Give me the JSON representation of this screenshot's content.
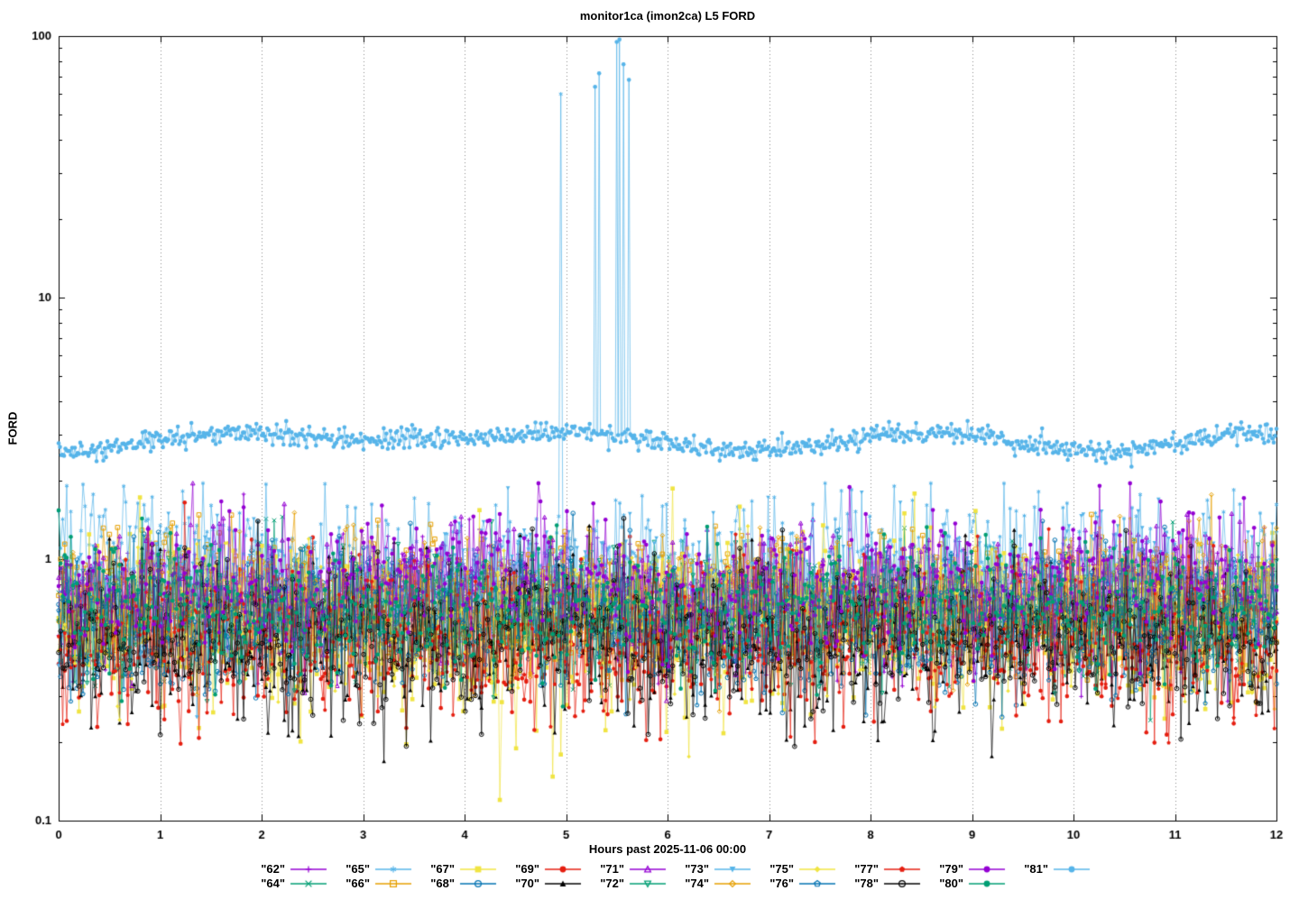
{
  "chart_data": {
    "type": "line",
    "title": "monitor1ca (imon2ca) L5 FORD",
    "xlabel": "Hours past 2025-11-06 00:00",
    "ylabel": "FORD",
    "x_range": [
      0,
      12
    ],
    "y_range": [
      0.1,
      100
    ],
    "y_scale": "log",
    "grid": "vertical-dotted-hourly",
    "legend_position": "bottom",
    "xtick_labels": [
      "0",
      "1",
      "2",
      "3",
      "4",
      "5",
      "6",
      "7",
      "8",
      "9",
      "10",
      "11",
      "12"
    ],
    "xtick_values": [
      0,
      1,
      2,
      3,
      4,
      5,
      6,
      7,
      8,
      9,
      10,
      11,
      12
    ],
    "ytick_labels": [
      "0.1",
      "1",
      "10",
      "100"
    ],
    "ytick_values": [
      0.1,
      1,
      10,
      100
    ],
    "palette": [
      "#9400D3",
      "#009E73",
      "#56B4E9",
      "#E69F00",
      "#F0E442",
      "#0072B2",
      "#E51E10",
      "#000000"
    ],
    "series": [
      {
        "name": "62",
        "label": "\"62\"",
        "color": "#9400D3",
        "marker": "plus",
        "baseline": 0.68,
        "log_sigma": 0.13,
        "points": 600,
        "seed": 101,
        "spikes": []
      },
      {
        "name": "64",
        "label": "\"64\"",
        "color": "#009E73",
        "marker": "cross",
        "baseline": 0.62,
        "log_sigma": 0.12,
        "points": 600,
        "seed": 102,
        "spikes": []
      },
      {
        "name": "65",
        "label": "\"65\"",
        "color": "#56B4E9",
        "marker": "star",
        "baseline": 0.95,
        "log_sigma": 0.13,
        "points": 600,
        "seed": 103,
        "hump": {
          "x": 0.6,
          "amp": 0.1,
          "width": 0.5
        },
        "spikes": [
          [
            4.95,
            60
          ]
        ]
      },
      {
        "name": "66",
        "label": "\"66\"",
        "color": "#E69F00",
        "marker": "square-open",
        "baseline": 0.72,
        "log_sigma": 0.12,
        "points": 600,
        "seed": 104,
        "hump": {
          "x": 8.25,
          "amp": 0.08,
          "width": 0.3
        },
        "spikes": []
      },
      {
        "name": "67",
        "label": "\"67\"",
        "color": "#F0E442",
        "marker": "square-filled",
        "baseline": 0.55,
        "log_sigma": 0.17,
        "points": 600,
        "seed": 105,
        "hump": {
          "x": 8.2,
          "amp": 0.07,
          "width": 0.3
        },
        "spikes": [
          [
            4.35,
            0.12
          ]
        ]
      },
      {
        "name": "68",
        "label": "\"68\"",
        "color": "#0072B2",
        "marker": "circle-open",
        "baseline": 0.6,
        "log_sigma": 0.13,
        "points": 600,
        "seed": 106,
        "spikes": []
      },
      {
        "name": "69",
        "label": "\"69\"",
        "color": "#E51E10",
        "marker": "circle-filled",
        "baseline": 0.5,
        "log_sigma": 0.15,
        "points": 600,
        "seed": 107,
        "spikes": []
      },
      {
        "name": "70",
        "label": "\"70\"",
        "color": "#000000",
        "marker": "triangle-filled",
        "baseline": 0.48,
        "log_sigma": 0.16,
        "points": 600,
        "seed": 108,
        "spikes": []
      },
      {
        "name": "71",
        "label": "\"71\"",
        "color": "#9400D3",
        "marker": "triangle-open",
        "baseline": 0.78,
        "log_sigma": 0.12,
        "points": 600,
        "seed": 109,
        "spikes": []
      },
      {
        "name": "72",
        "label": "\"72\"",
        "color": "#009E73",
        "marker": "invtriangle-open",
        "baseline": 0.62,
        "log_sigma": 0.12,
        "points": 600,
        "seed": 110,
        "spikes": []
      },
      {
        "name": "73",
        "label": "\"73\"",
        "color": "#56B4E9",
        "marker": "invtriangle-filled",
        "baseline": 0.8,
        "log_sigma": 0.13,
        "points": 600,
        "seed": 111,
        "spikes": []
      },
      {
        "name": "74",
        "label": "\"74\"",
        "color": "#E69F00",
        "marker": "diamond-open",
        "baseline": 0.7,
        "log_sigma": 0.12,
        "points": 600,
        "seed": 112,
        "spikes": []
      },
      {
        "name": "75",
        "label": "\"75\"",
        "color": "#F0E442",
        "marker": "diamond-filled",
        "baseline": 0.6,
        "log_sigma": 0.14,
        "points": 600,
        "seed": 113,
        "spikes": []
      },
      {
        "name": "76",
        "label": "\"76\"",
        "color": "#0072B2",
        "marker": "pentagon-open",
        "baseline": 0.58,
        "log_sigma": 0.13,
        "points": 600,
        "seed": 114,
        "spikes": []
      },
      {
        "name": "77",
        "label": "\"77\"",
        "color": "#E51E10",
        "marker": "pentagon-filled",
        "baseline": 0.52,
        "log_sigma": 0.14,
        "points": 600,
        "seed": 115,
        "spikes": []
      },
      {
        "name": "78",
        "label": "\"78\"",
        "color": "#000000",
        "marker": "circle-dot",
        "baseline": 0.5,
        "log_sigma": 0.15,
        "points": 600,
        "seed": 116,
        "spikes": []
      },
      {
        "name": "79",
        "label": "\"79\"",
        "color": "#9400D3",
        "marker": "circle-filled",
        "baseline": 0.8,
        "log_sigma": 0.13,
        "points": 600,
        "seed": 117,
        "spikes": []
      },
      {
        "name": "80",
        "label": "\"80\"",
        "color": "#009E73",
        "marker": "circle-filled",
        "baseline": 0.65,
        "log_sigma": 0.12,
        "points": 600,
        "seed": 118,
        "spikes": []
      },
      {
        "name": "81",
        "label": "\"81\"",
        "color": "#56B4E9",
        "marker": "circle-filled",
        "baseline": 2.8,
        "log_sigma": 0.02,
        "points": 900,
        "seed": 119,
        "clamp": [
          2.1,
          3.7
        ],
        "hump": {
          "x": 3.5,
          "amp": 0.045,
          "width": 0.9
        },
        "spikes": [
          [
            5.28,
            64
          ],
          [
            5.33,
            72
          ],
          [
            5.5,
            95
          ],
          [
            5.53,
            97
          ],
          [
            5.57,
            78
          ],
          [
            5.62,
            68
          ]
        ]
      }
    ],
    "legend_rows": [
      [
        "62",
        "65",
        "67",
        "69",
        "71",
        "73",
        "75",
        "77",
        "79",
        "81"
      ],
      [
        "64",
        "66",
        "68",
        "70",
        "72",
        "74",
        "76",
        "78",
        "80"
      ]
    ]
  }
}
